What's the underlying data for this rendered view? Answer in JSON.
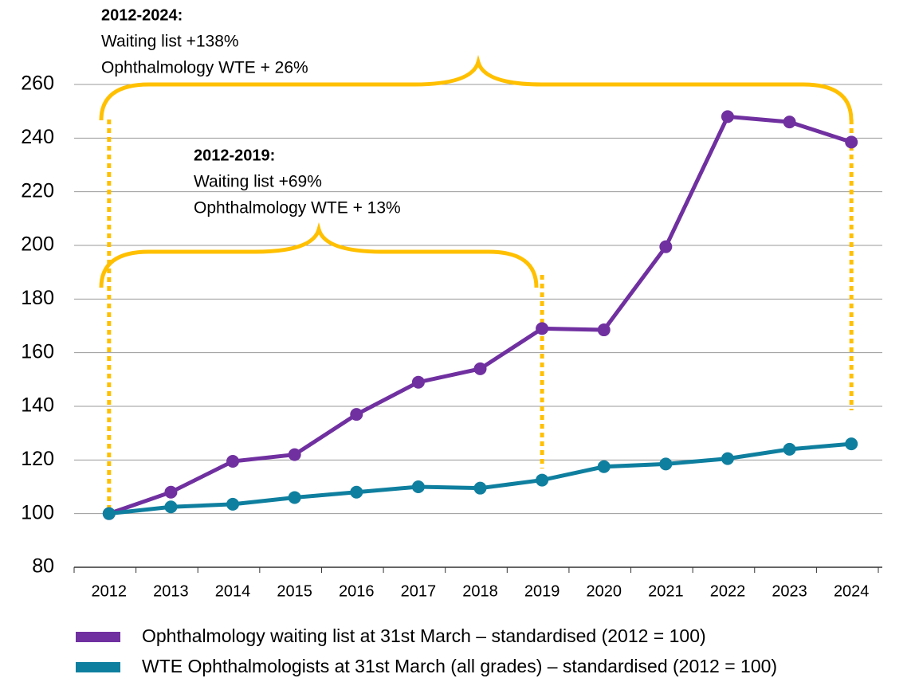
{
  "chart_data": {
    "type": "line",
    "categories": [
      "2012",
      "2013",
      "2014",
      "2015",
      "2016",
      "2017",
      "2018",
      "2019",
      "2020",
      "2021",
      "2022",
      "2023",
      "2024"
    ],
    "series": [
      {
        "name": "Ophthalmology waiting list at 31st March – standardised (2012 = 100)",
        "color": "#7030a0",
        "values": [
          100,
          108,
          119.5,
          122,
          137,
          149,
          154,
          169,
          168.5,
          199.5,
          248,
          246,
          238.5
        ]
      },
      {
        "name": "WTE Ophthalmologists at 31st March (all grades) – standardised (2012 = 100)",
        "color": "#0f7f9f",
        "values": [
          100,
          102.5,
          103.5,
          106,
          108,
          110,
          109.5,
          112.5,
          117.5,
          118.5,
          120.5,
          124,
          126
        ]
      }
    ],
    "ylim": [
      80,
      260
    ],
    "yticks": [
      80,
      100,
      120,
      140,
      160,
      180,
      200,
      220,
      240,
      260
    ],
    "grid": true,
    "annotations": [
      {
        "title": "2012-2024:",
        "lines": [
          "Waiting list +138%",
          "Ophthalmology  WTE + 26%"
        ]
      },
      {
        "title": "2012-2019:",
        "lines": [
          "Waiting list +69%",
          "Ophthalmology  WTE + 13%"
        ]
      }
    ]
  }
}
